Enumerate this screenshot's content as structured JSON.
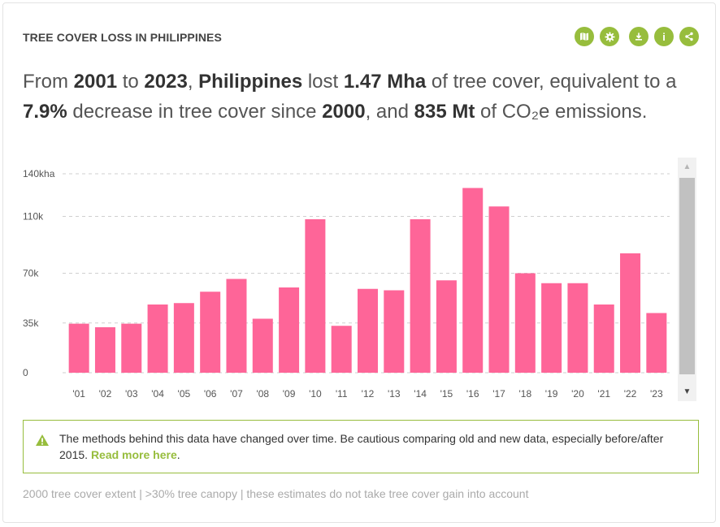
{
  "header": {
    "title": "TREE COVER LOSS IN PHILIPPINES",
    "icons": [
      {
        "name": "map-icon"
      },
      {
        "name": "settings-icon"
      },
      {
        "name": "download-icon"
      },
      {
        "name": "info-icon",
        "glyph": "i"
      },
      {
        "name": "share-icon"
      }
    ]
  },
  "summary": {
    "p1": "From ",
    "start_year": "2001",
    "p2": " to ",
    "end_year": "2023",
    "p3": ", ",
    "country": "Philippines",
    "p4": " lost ",
    "loss": "1.47 Mha",
    "p5": " of tree cover, equivalent to a ",
    "percent": "7.9%",
    "p6": " decrease in tree cover since ",
    "base_year": "2000",
    "p7": ", and ",
    "emissions": "835 Mt",
    "p8": " of CO₂e emissions."
  },
  "chart_data": {
    "type": "bar",
    "title": "",
    "xlabel": "",
    "ylabel": "",
    "categories": [
      "'01",
      "'02",
      "'03",
      "'04",
      "'05",
      "'06",
      "'07",
      "'08",
      "'09",
      "'10",
      "'11",
      "'12",
      "'13",
      "'14",
      "'15",
      "'16",
      "'17",
      "'18",
      "'19",
      "'20",
      "'21",
      "'22",
      "'23"
    ],
    "values": [
      34.5,
      32,
      34.5,
      48,
      49,
      57,
      66,
      38,
      60,
      108,
      33,
      59,
      58,
      108,
      65,
      130,
      117,
      70,
      63,
      63,
      48,
      84,
      42
    ],
    "ylim": [
      0,
      140
    ],
    "yticks": [
      0,
      35,
      70,
      110,
      140
    ],
    "ytick_labels": [
      "0",
      "35k",
      "70k",
      "110k",
      "140kha"
    ],
    "grid": true,
    "bar_color": "#fe6598"
  },
  "notice": {
    "text": "The methods behind this data have changed over time. Be cautious comparing old and new data, especially before/after 2015. ",
    "link": "Read more here",
    "end": "."
  },
  "footnote": "2000 tree cover extent | >30% tree canopy | these estimates do not take tree cover gain into account"
}
